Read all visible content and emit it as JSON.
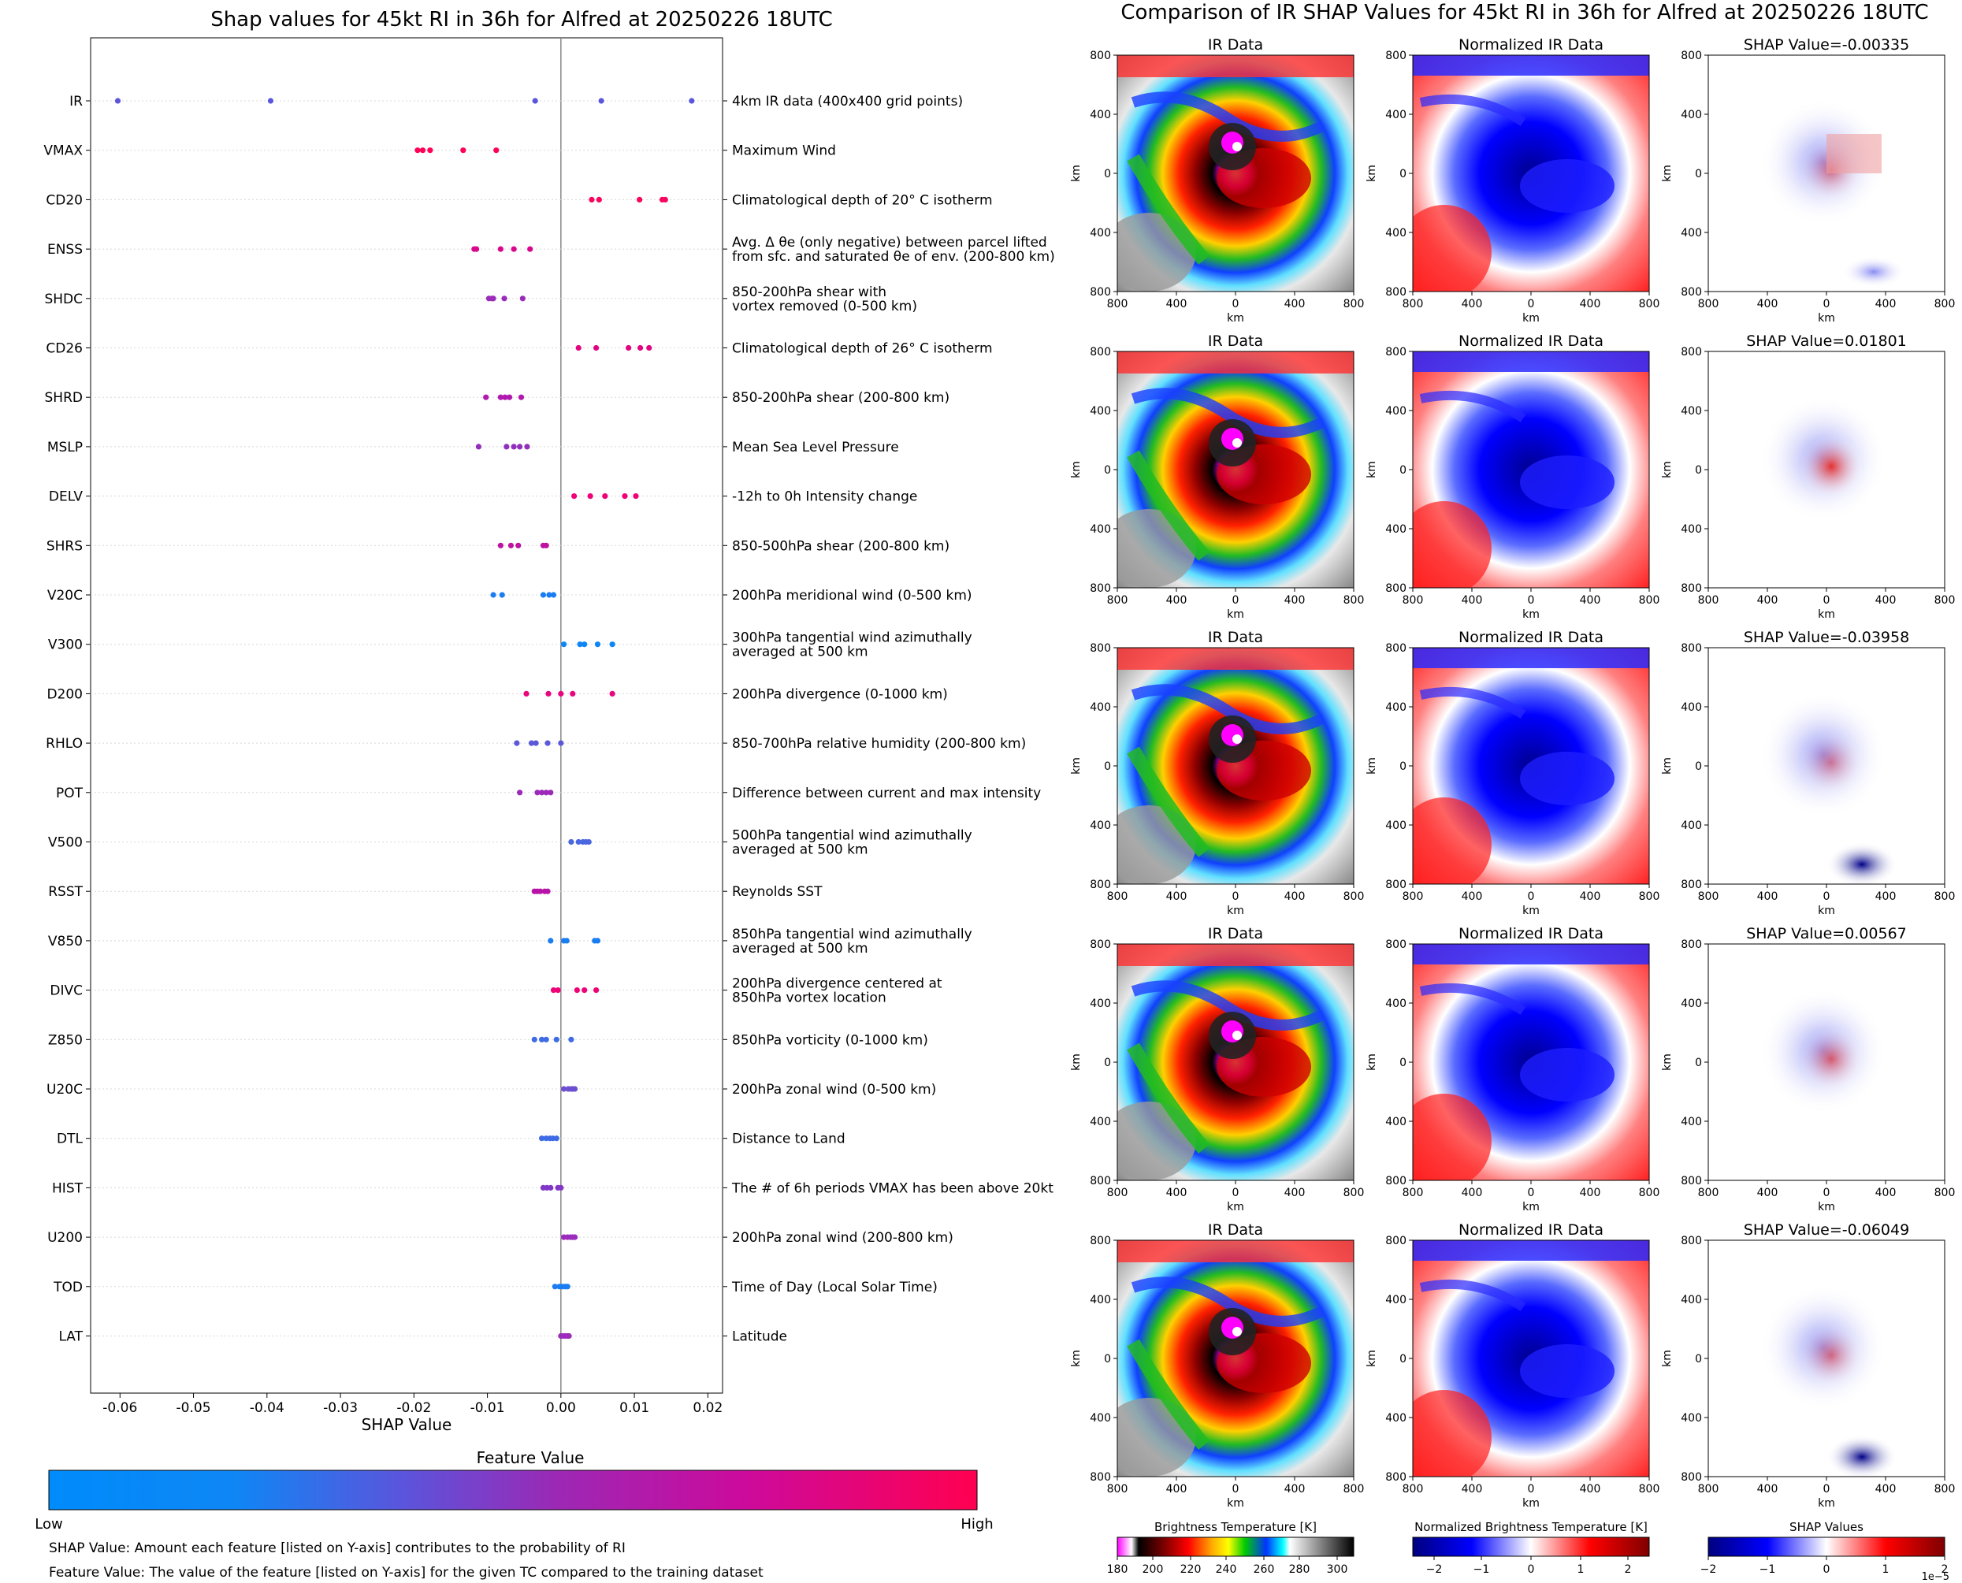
{
  "left_title": "Shap values for 45kt RI in 36h for Alfred at 20250226 18UTC",
  "right_title": "Comparison of IR SHAP Values for 45kt RI in 36h for Alfred at 20250226 18UTC",
  "notes": {
    "shap": "SHAP Value: Amount each feature [listed on Y-axis] contributes to the probability of RI",
    "feature": "Feature Value: The value of the feature [listed on Y-axis] for the given TC compared to the training dataset"
  },
  "colorbar": {
    "title": "Feature Value",
    "low": "Low",
    "high": "High",
    "colors": [
      "#008bfb",
      "#4f5fe3",
      "#8a38c0",
      "#c20aa5",
      "#ff0051"
    ]
  },
  "chart_data": [
    {
      "type": "scatter",
      "title": "Shap values for 45kt RI in 36h for Alfred at 20250226 18UTC",
      "xlabel": "SHAP Value",
      "xlim": [
        -0.064,
        0.022
      ],
      "xticks": [
        "-0.06",
        "-0.05",
        "-0.04",
        "-0.03",
        "-0.02",
        "-0.01",
        "0.00",
        "0.01",
        "0.02"
      ],
      "xtick_values": [
        -0.06,
        -0.05,
        -0.04,
        -0.03,
        -0.02,
        -0.01,
        0.0,
        0.01,
        0.02
      ],
      "features": [
        {
          "name": "IR",
          "desc": [
            "4km IR data (400x400 grid points)"
          ],
          "color": "#5a55dc",
          "points": [
            -0.0603,
            -0.0395,
            -0.0035,
            0.0055,
            0.0178
          ]
        },
        {
          "name": "VMAX",
          "desc": [
            "Maximum Wind"
          ],
          "color": "#ff0257",
          "points": [
            -0.0195,
            -0.0188,
            -0.0178,
            -0.0133,
            -0.0088
          ]
        },
        {
          "name": "CD20",
          "desc": [
            "Climatological depth of 20° C isotherm"
          ],
          "color": "#f8055f",
          "points": [
            0.0042,
            0.0052,
            0.0107,
            0.0138,
            0.0142
          ]
        },
        {
          "name": "ENSS",
          "desc": [
            "Avg. Δ θe (only negative) between parcel lifted",
            "from sfc. and saturated θe of env. (200-800 km)"
          ],
          "color": "#d8078c",
          "points": [
            -0.0118,
            -0.0115,
            -0.0082,
            -0.0064,
            -0.0042
          ]
        },
        {
          "name": "SHDC",
          "desc": [
            "850-200hPa shear with",
            "vortex removed (0-500 km)"
          ],
          "color": "#9b2cb9",
          "points": [
            -0.0098,
            -0.0094,
            -0.0092,
            -0.0077,
            -0.0052
          ]
        },
        {
          "name": "CD26",
          "desc": [
            "Climatological depth of 26° C isotherm"
          ],
          "color": "#e30480",
          "points": [
            0.0024,
            0.0048,
            0.0092,
            0.0108,
            0.012
          ]
        },
        {
          "name": "SHRD",
          "desc": [
            "850-200hPa shear (200-800 km)"
          ],
          "color": "#b11aae",
          "points": [
            -0.0102,
            -0.0082,
            -0.0076,
            -0.007,
            -0.0054
          ]
        },
        {
          "name": "MSLP",
          "desc": [
            "Mean Sea Level Pressure"
          ],
          "color": "#9230bd",
          "points": [
            -0.0112,
            -0.0074,
            -0.0064,
            -0.0056,
            -0.0046
          ]
        },
        {
          "name": "DELV",
          "desc": [
            "-12h to 0h Intensity change"
          ],
          "color": "#ef0279",
          "points": [
            0.0018,
            0.004,
            0.006,
            0.0087,
            0.0102
          ]
        },
        {
          "name": "SHRS",
          "desc": [
            "850-500hPa shear (200-800 km)"
          ],
          "color": "#be129f",
          "points": [
            -0.0082,
            -0.0068,
            -0.0058,
            -0.0024,
            -0.002
          ]
        },
        {
          "name": "V20C",
          "desc": [
            "200hPa meridional wind (0-500 km)"
          ],
          "color": "#1a7ef2",
          "points": [
            -0.0092,
            -0.008,
            -0.0024,
            -0.0016,
            -0.001
          ]
        },
        {
          "name": "V300",
          "desc": [
            "300hPa tangential wind azimuthally",
            "averaged at 500 km"
          ],
          "color": "#0f86f5",
          "points": [
            0.0004,
            0.0026,
            0.0032,
            0.005,
            0.007
          ]
        },
        {
          "name": "D200",
          "desc": [
            "200hPa divergence (0-1000 km)"
          ],
          "color": "#e8067e",
          "points": [
            -0.0047,
            -0.0017,
            0.0,
            0.0016,
            0.007
          ]
        },
        {
          "name": "RHLO",
          "desc": [
            "850-700hPa relative humidity (200-800 km)"
          ],
          "color": "#5c59d8",
          "points": [
            -0.006,
            -0.004,
            -0.0034,
            -0.0018,
            0.0
          ]
        },
        {
          "name": "POT",
          "desc": [
            "Difference between current and max intensity"
          ],
          "color": "#9c2ab8",
          "points": [
            -0.0056,
            -0.0032,
            -0.0026,
            -0.002,
            -0.0014
          ]
        },
        {
          "name": "V500",
          "desc": [
            "500hPa tangential wind azimuthally",
            "averaged at 500 km"
          ],
          "color": "#4a66e0",
          "points": [
            0.0014,
            0.0024,
            0.003,
            0.0034,
            0.0038
          ]
        },
        {
          "name": "RSST",
          "desc": [
            "Reynolds SST"
          ],
          "color": "#b813a8",
          "points": [
            -0.0036,
            -0.0032,
            -0.0028,
            -0.0022,
            -0.0018
          ]
        },
        {
          "name": "V850",
          "desc": [
            "850hPa tangential wind azimuthally",
            "averaged at 500 km"
          ],
          "color": "#1a7ef2",
          "points": [
            -0.0014,
            0.0004,
            0.0008,
            0.0046,
            0.005
          ]
        },
        {
          "name": "DIVC",
          "desc": [
            "200hPa divergence centered at",
            "850hPa vortex location"
          ],
          "color": "#ef0275",
          "points": [
            -0.001,
            -0.0004,
            0.0022,
            0.0032,
            0.0048
          ]
        },
        {
          "name": "Z850",
          "desc": [
            "850hPa vorticity (0-1000 km)"
          ],
          "color": "#3f6be4",
          "points": [
            -0.0036,
            -0.0026,
            -0.002,
            -0.0006,
            0.0014
          ]
        },
        {
          "name": "U20C",
          "desc": [
            "200hPa zonal wind (0-500 km)"
          ],
          "color": "#6d4fd0",
          "points": [
            0.0004,
            0.001,
            0.0014,
            0.0016,
            0.0019
          ]
        },
        {
          "name": "DTL",
          "desc": [
            "Distance to Land"
          ],
          "color": "#3d6ce4",
          "points": [
            -0.0026,
            -0.002,
            -0.0015,
            -0.0011,
            -0.0006
          ]
        },
        {
          "name": "HIST",
          "desc": [
            "The # of 6h periods VMAX has been above 20kt"
          ],
          "color": "#8237c6",
          "points": [
            -0.0024,
            -0.0019,
            -0.0014,
            -0.0004,
            0.0
          ]
        },
        {
          "name": "U200",
          "desc": [
            "200hPa zonal wind (200-800 km)"
          ],
          "color": "#9b2cbc",
          "points": [
            0.0004,
            0.0009,
            0.0013,
            0.0016,
            0.0019
          ]
        },
        {
          "name": "TOD",
          "desc": [
            "Time of Day (Local Solar Time)"
          ],
          "color": "#1a7ef2",
          "points": [
            -0.0008,
            -0.0002,
            0.0002,
            0.0006,
            0.0009
          ]
        },
        {
          "name": "LAT",
          "desc": [
            "Latitude"
          ],
          "color": "#9b2cbc",
          "points": [
            0.0,
            0.0003,
            0.0006,
            0.0009,
            0.0011
          ]
        }
      ]
    },
    {
      "type": "heatmap",
      "title": "Comparison of IR SHAP Values for 45kt RI in 36h for Alfred at 20250226 18UTC",
      "panel_titles": [
        "IR Data",
        "Normalized IR Data"
      ],
      "shap_values": [
        "-0.00335",
        "0.01801",
        "-0.03958",
        "0.00567",
        "-0.06049"
      ],
      "shap_title_prefix": "SHAP Value=",
      "axis_label": "km",
      "xticks": [
        "800",
        "400",
        "0",
        "400",
        "800"
      ],
      "yticks": [
        "800",
        "400",
        "0",
        "400",
        "800"
      ],
      "colorbars": [
        {
          "label": "Brightness Temperature [K]",
          "ticks": [
            "180",
            "200",
            "220",
            "240",
            "260",
            "280",
            "300"
          ]
        },
        {
          "label": "Normalized Brightness Temperature [K]",
          "ticks": [
            "−2",
            "−1",
            "0",
            "1",
            "2"
          ]
        },
        {
          "label": "SHAP Values",
          "ticks": [
            "−2",
            "−1",
            "0",
            "1",
            "2"
          ],
          "multiplier": "1e−5"
        }
      ]
    }
  ]
}
